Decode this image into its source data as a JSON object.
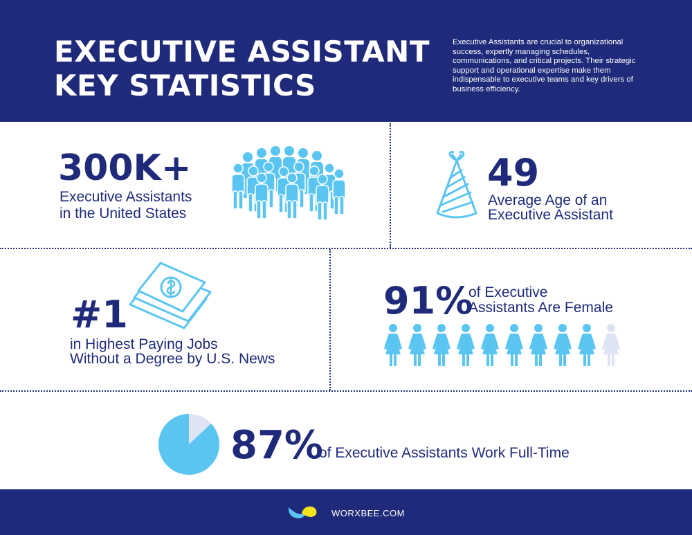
{
  "header": {
    "title_line1": "EXECUTIVE ASSISTANT",
    "title_line2": "KEY STATISTICS",
    "intro": "Executive Assistants are crucial to organizational success, expertly managing schedules, communications, and critical projects. Their strategic support and operational expertise make them indispensable to executive teams and key drivers of business efficiency."
  },
  "stats": {
    "count": {
      "value": "300K+",
      "line1": "Executive Assistants",
      "line2": "in the United States",
      "icon": "crowd-icon"
    },
    "age": {
      "value": "49",
      "line1": "Average Age of an",
      "line2": "Executive Assistant",
      "icon": "party-hat-icon"
    },
    "rank": {
      "value": "#1",
      "line1": "in Highest Paying Jobs",
      "line2": "Without a Degree by U.S. News",
      "icon": "money-stack-icon"
    },
    "female": {
      "value": "91%",
      "line1": "of Executive",
      "line2": "Assistants Are Female",
      "icon": "woman-figure-icon",
      "filled": 9,
      "total": 10
    },
    "fulltime": {
      "value": "87%",
      "text": "of Executive Assistants Work Full-Time",
      "icon": "pie-chart-icon",
      "fraction": 0.87
    }
  },
  "colors": {
    "navy": "#1f2a7a",
    "light_blue": "#5bc5f2",
    "pale": "#dfe4f5"
  },
  "footer": {
    "brand": "WORXBEE.COM",
    "logo": "worxbee-logo"
  }
}
